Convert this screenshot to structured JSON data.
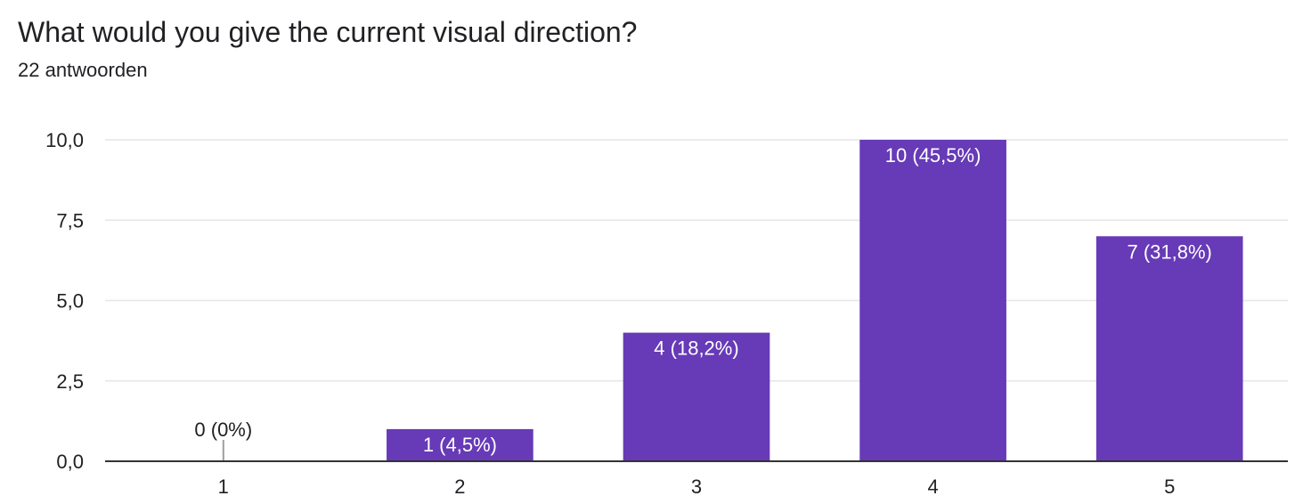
{
  "question": {
    "title": "What would you give the current visual direction?",
    "responses": "22 antwoorden"
  },
  "colors": {
    "bar": "#673ab7",
    "bar_label_inside": "#ffffff",
    "bar_label_outside": "#202124",
    "grid": "#e6e6e6",
    "axis": "#333333",
    "zero_tick": "#9e9e9e",
    "tick_text": "#202124"
  },
  "chart_data": {
    "type": "bar",
    "categories": [
      "1",
      "2",
      "3",
      "4",
      "5"
    ],
    "values": [
      0,
      1,
      4,
      10,
      7
    ],
    "data_labels": [
      "0 (0%)",
      "1 (4,5%)",
      "4 (18,2%)",
      "10 (45,5%)",
      "7 (31,8%)"
    ],
    "ylim": [
      0,
      10
    ],
    "yticks": [
      0,
      2.5,
      5,
      7.5,
      10
    ],
    "ytick_labels": [
      "0,0",
      "2,5",
      "5,0",
      "7,5",
      "10,0"
    ],
    "grid": true,
    "legend": "none"
  }
}
